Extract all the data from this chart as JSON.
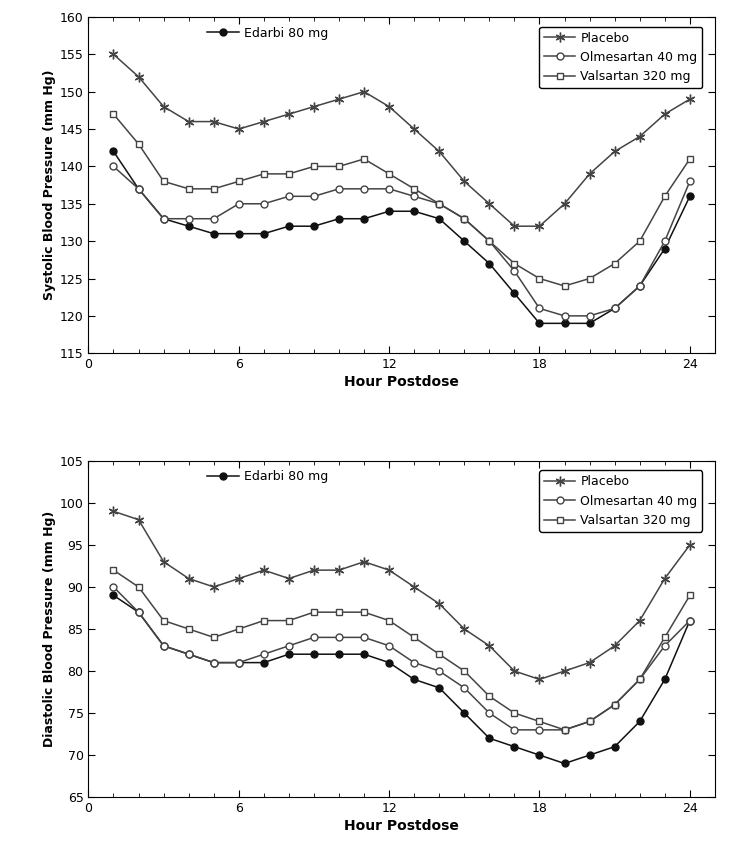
{
  "systolic": {
    "hours": [
      1,
      2,
      3,
      4,
      5,
      6,
      7,
      8,
      9,
      10,
      11,
      12,
      13,
      14,
      15,
      16,
      17,
      18,
      19,
      20,
      21,
      22,
      23,
      24
    ],
    "placebo": [
      155,
      152,
      148,
      146,
      146,
      145,
      146,
      147,
      148,
      149,
      150,
      148,
      145,
      142,
      138,
      135,
      132,
      132,
      135,
      139,
      142,
      144,
      147,
      149
    ],
    "edarbi": [
      142,
      137,
      133,
      132,
      131,
      131,
      131,
      132,
      132,
      133,
      133,
      134,
      134,
      133,
      130,
      127,
      123,
      119,
      119,
      119,
      121,
      124,
      129,
      136
    ],
    "olmesartan": [
      140,
      137,
      133,
      133,
      133,
      135,
      135,
      136,
      136,
      137,
      137,
      137,
      136,
      135,
      133,
      130,
      126,
      121,
      120,
      120,
      121,
      124,
      130,
      138
    ],
    "valsartan": [
      147,
      143,
      138,
      137,
      137,
      138,
      139,
      139,
      140,
      140,
      141,
      139,
      137,
      135,
      133,
      130,
      127,
      125,
      124,
      125,
      127,
      130,
      136,
      141
    ],
    "ylabel": "Systolic Blood Pressure (mm Hg)",
    "ylim": [
      115,
      160
    ],
    "yticks": [
      115,
      120,
      125,
      130,
      135,
      140,
      145,
      150,
      155,
      160
    ]
  },
  "diastolic": {
    "hours": [
      1,
      2,
      3,
      4,
      5,
      6,
      7,
      8,
      9,
      10,
      11,
      12,
      13,
      14,
      15,
      16,
      17,
      18,
      19,
      20,
      21,
      22,
      23,
      24
    ],
    "placebo": [
      99,
      98,
      93,
      91,
      90,
      91,
      92,
      91,
      92,
      92,
      93,
      92,
      90,
      88,
      85,
      83,
      80,
      79,
      80,
      81,
      83,
      86,
      91,
      95
    ],
    "edarbi": [
      89,
      87,
      83,
      82,
      81,
      81,
      81,
      82,
      82,
      82,
      82,
      81,
      79,
      78,
      75,
      72,
      71,
      70,
      69,
      70,
      71,
      74,
      79,
      86
    ],
    "olmesartan": [
      90,
      87,
      83,
      82,
      81,
      81,
      82,
      83,
      84,
      84,
      84,
      83,
      81,
      80,
      78,
      75,
      73,
      73,
      73,
      74,
      76,
      79,
      83,
      86
    ],
    "valsartan": [
      92,
      90,
      86,
      85,
      84,
      85,
      86,
      86,
      87,
      87,
      87,
      86,
      84,
      82,
      80,
      77,
      75,
      74,
      73,
      74,
      76,
      79,
      84,
      89
    ],
    "ylabel": "Diastolic Blood Pressure (mm Hg)",
    "ylim": [
      65,
      105
    ],
    "yticks": [
      65,
      70,
      75,
      80,
      85,
      90,
      95,
      100,
      105
    ]
  },
  "xlabel": "Hour Postdose",
  "legend_edarbi": "Edarbi 80 mg",
  "legend_placebo": "Placebo",
  "legend_olmesartan": "Olmesartan 40 mg",
  "legend_valsartan": "Valsartan 320 mg",
  "line_color": "#444444",
  "edarbi_color": "#111111",
  "xticks": [
    0,
    6,
    12,
    18,
    24
  ],
  "figsize": [
    7.37,
    8.48
  ],
  "dpi": 100
}
